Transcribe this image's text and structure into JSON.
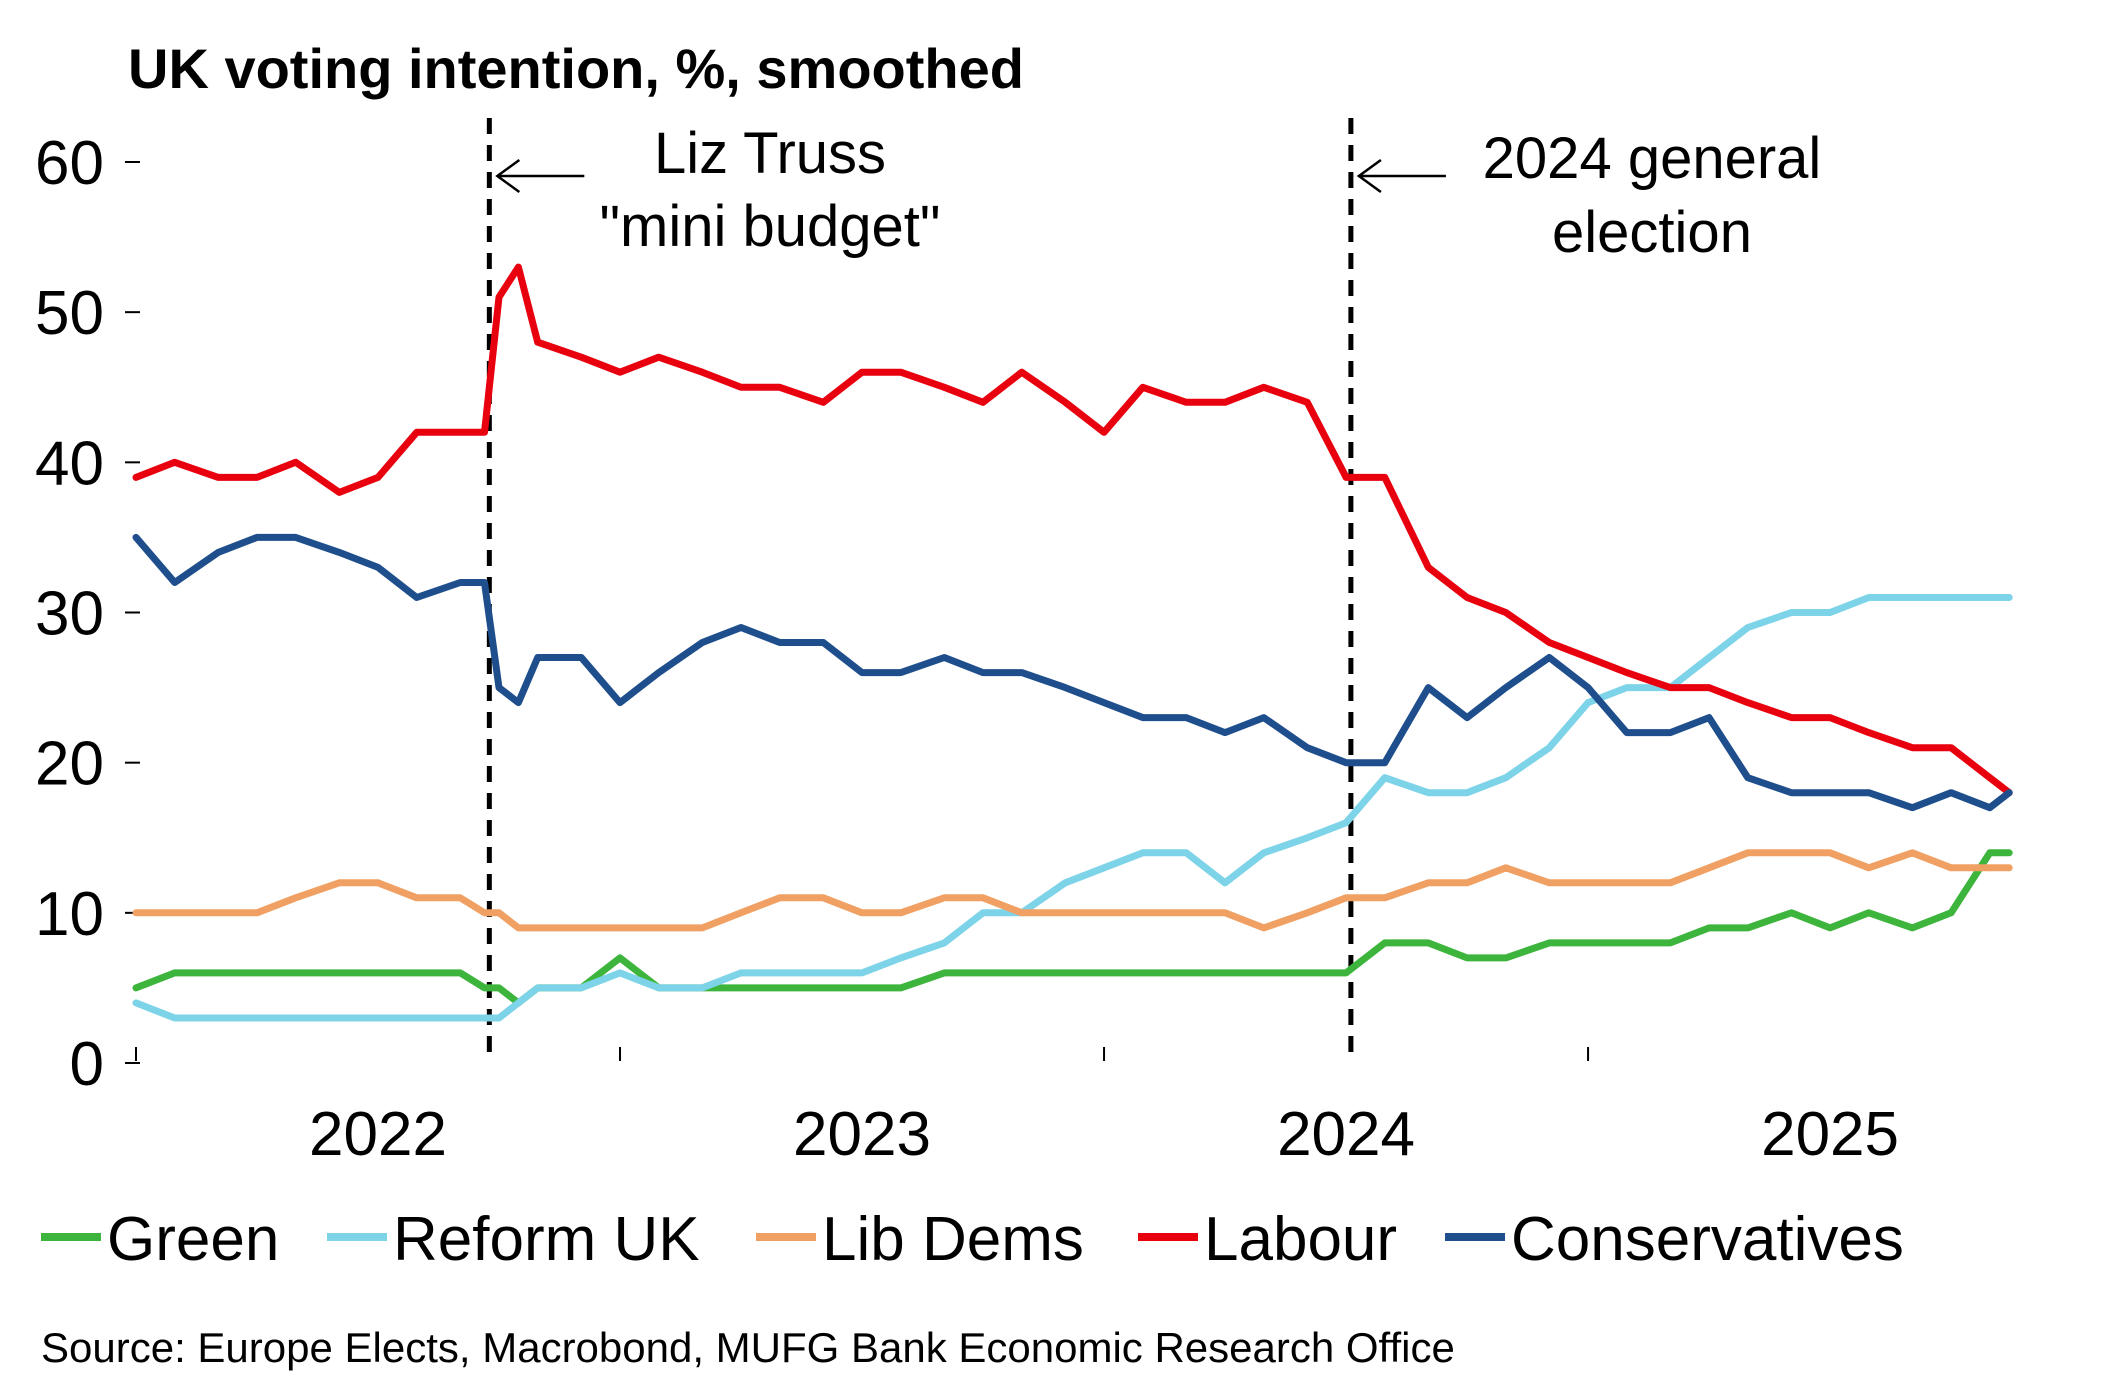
{
  "chart_data": {
    "type": "line",
    "title": "UK voting intention, %, smoothed",
    "source": "Source: Europe Elects, Macrobond, MUFG Bank Economic Research Office",
    "x": [
      2022.0,
      2022.08,
      2022.17,
      2022.25,
      2022.33,
      2022.42,
      2022.5,
      2022.58,
      2022.67,
      2022.72,
      2022.75,
      2022.79,
      2022.83,
      2022.92,
      2023.0,
      2023.08,
      2023.17,
      2023.25,
      2023.33,
      2023.42,
      2023.5,
      2023.58,
      2023.67,
      2023.75,
      2023.83,
      2023.92,
      2024.0,
      2024.08,
      2024.17,
      2024.25,
      2024.33,
      2024.42,
      2024.5,
      2024.58,
      2024.67,
      2024.75,
      2024.83,
      2024.92,
      2025.0,
      2025.08,
      2025.17,
      2025.25,
      2025.33,
      2025.42,
      2025.5,
      2025.58,
      2025.67,
      2025.75,
      2025.83,
      2025.87
    ],
    "series": [
      {
        "name": "Green",
        "color": "#3db53d",
        "values": [
          5,
          6,
          6,
          6,
          6,
          6,
          6,
          6,
          6,
          5,
          5,
          4,
          5,
          5,
          7,
          5,
          5,
          5,
          5,
          5,
          5,
          5,
          6,
          6,
          6,
          6,
          6,
          6,
          6,
          6,
          6,
          6,
          6,
          8,
          8,
          7,
          7,
          8,
          8,
          8,
          8,
          9,
          9,
          10,
          9,
          10,
          9,
          10,
          14,
          14
        ]
      },
      {
        "name": "Reform UK",
        "color": "#7dd3e8",
        "values": [
          4,
          3,
          3,
          3,
          3,
          3,
          3,
          3,
          3,
          3,
          3,
          4,
          5,
          5,
          6,
          5,
          5,
          6,
          6,
          6,
          6,
          7,
          8,
          10,
          10,
          12,
          13,
          14,
          14,
          12,
          14,
          15,
          16,
          19,
          18,
          18,
          19,
          21,
          24,
          25,
          25,
          27,
          29,
          30,
          30,
          31,
          31,
          31,
          31,
          31
        ]
      },
      {
        "name": "Lib Dems",
        "color": "#f0a062",
        "values": [
          10,
          10,
          10,
          10,
          11,
          12,
          12,
          11,
          11,
          10,
          10,
          9,
          9,
          9,
          9,
          9,
          9,
          10,
          11,
          11,
          10,
          10,
          11,
          11,
          10,
          10,
          10,
          10,
          10,
          10,
          9,
          10,
          11,
          11,
          12,
          12,
          13,
          12,
          12,
          12,
          12,
          13,
          14,
          14,
          14,
          13,
          14,
          13,
          13,
          13
        ]
      },
      {
        "name": "Labour",
        "color": "#e8000e",
        "values": [
          39,
          40,
          39,
          39,
          40,
          38,
          39,
          42,
          42,
          42,
          51,
          53,
          48,
          47,
          46,
          47,
          46,
          45,
          45,
          44,
          46,
          46,
          45,
          44,
          46,
          44,
          42,
          45,
          44,
          44,
          45,
          44,
          39,
          39,
          33,
          31,
          30,
          28,
          27,
          26,
          25,
          25,
          24,
          23,
          23,
          22,
          21,
          21,
          19,
          18
        ]
      },
      {
        "name": "Conservatives",
        "color": "#1f4e8c",
        "values": [
          35,
          32,
          34,
          35,
          35,
          34,
          33,
          31,
          32,
          32,
          25,
          24,
          27,
          27,
          24,
          26,
          28,
          29,
          28,
          28,
          26,
          26,
          27,
          26,
          26,
          25,
          24,
          23,
          23,
          22,
          23,
          21,
          20,
          20,
          25,
          23,
          25,
          27,
          25,
          22,
          22,
          23,
          19,
          18,
          18,
          18,
          17,
          18,
          17,
          18
        ]
      }
    ],
    "xlim": [
      2022,
      2025.88
    ],
    "xticks": [
      {
        "value": 2022,
        "label": "2022"
      },
      {
        "value": 2023,
        "label": "2023"
      },
      {
        "value": 2024,
        "label": "2024"
      },
      {
        "value": 2025,
        "label": "2025"
      }
    ],
    "ylim": [
      0,
      60
    ],
    "yticks": [
      0,
      10,
      20,
      30,
      40,
      50,
      60
    ],
    "grid": false,
    "legend": "bottom",
    "annotations": [
      {
        "x": 2022.73,
        "lines": [
          "Liz Truss",
          "\"mini budget\""
        ]
      },
      {
        "x": 2024.51,
        "lines": [
          "2024 general",
          "election"
        ]
      }
    ]
  }
}
